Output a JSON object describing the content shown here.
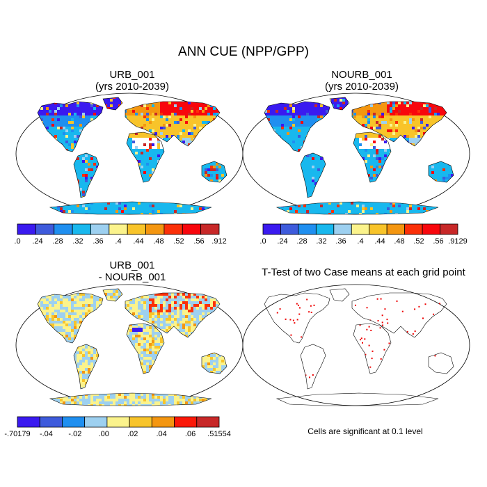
{
  "title": "ANN CUE (NPP/GPP)",
  "panels": [
    {
      "id": "urb",
      "title_line1": "URB_001",
      "title_line2": "(yrs 2010-2039)"
    },
    {
      "id": "nourb",
      "title_line1": "NOURB_001",
      "title_line2": "(yrs 2010-2039)"
    },
    {
      "id": "diff",
      "title_line1": "URB_001",
      "title_line2": "- NOURB_001"
    },
    {
      "id": "ttest",
      "title_line1": "T-Test of two Case means at each grid point",
      "title_line2": ""
    }
  ],
  "colorbars": {
    "urb": {
      "labels": [
        ".0",
        ".24",
        ".28",
        ".32",
        ".36",
        ".4",
        ".44",
        ".48",
        ".52",
        ".56",
        ".912"
      ],
      "colors": [
        "#3a1af0",
        "#3e5bdc",
        "#1f8ff0",
        "#18b8ee",
        "#9dd0f0",
        "#fbf38c",
        "#f8c42a",
        "#f49610",
        "#fb3008",
        "#f8060c",
        "#c82828"
      ]
    },
    "nourb": {
      "labels": [
        ".0",
        ".24",
        ".28",
        ".32",
        ".36",
        ".4",
        ".44",
        ".48",
        ".52",
        ".56",
        ".9129"
      ],
      "colors": [
        "#3a1af0",
        "#3e5bdc",
        "#1f8ff0",
        "#18b8ee",
        "#9dd0f0",
        "#fbf38c",
        "#f8c42a",
        "#f49610",
        "#fb3008",
        "#f8060c",
        "#c82828"
      ]
    },
    "diff": {
      "labels": [
        "-.70179",
        "-.04",
        "-.02",
        ".00",
        ".02",
        ".04",
        ".06",
        ".51554"
      ],
      "colors": [
        "#3a1af0",
        "#3e5bdc",
        "#1f8ff0",
        "#9dd0f0",
        "#fbf38c",
        "#f8c42a",
        "#f49610",
        "#fb1808",
        "#c82828"
      ]
    }
  },
  "significance_note": "Cells are significant at 0.1 level",
  "significance_color": "#ee0000"
}
